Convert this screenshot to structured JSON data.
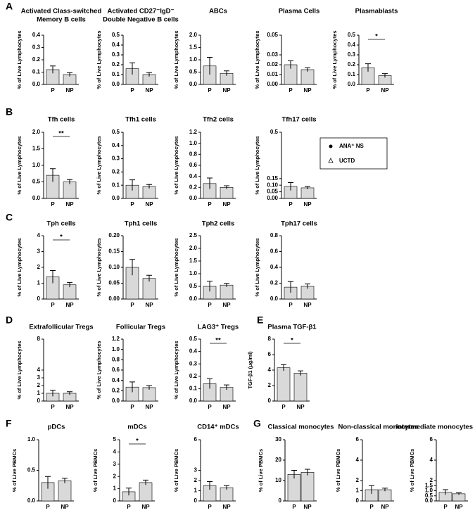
{
  "chart_data": [
    {
      "type": "bar",
      "panel": "A",
      "title": [
        "Activated Class-switched",
        "Memory B cells"
      ],
      "ylabel": "% of Live Lymphocytes",
      "categories": [
        "P",
        "NP"
      ],
      "values": [
        0.12,
        0.08
      ],
      "errors": [
        0.03,
        0.015
      ],
      "ylim": [
        0,
        0.4
      ],
      "yticks": [
        {
          "value": 0,
          "label": "0.0"
        },
        0.1,
        0.2,
        0.3,
        0.4
      ],
      "color": "#d9d9d9"
    },
    {
      "type": "bar",
      "title": [
        "Activated CD27⁻IgD⁻",
        "Double Negative B cells"
      ],
      "ylabel": "% of Live Lymphocytes",
      "categories": [
        "P",
        "NP"
      ],
      "values": [
        0.16,
        0.1
      ],
      "errors": [
        0.06,
        0.02
      ],
      "ylim": [
        0,
        0.5
      ],
      "yticks": [
        {
          "value": 0,
          "label": "0.0"
        },
        0.1,
        0.2,
        0.3,
        0.4,
        0.5
      ],
      "color": "#d9d9d9"
    },
    {
      "type": "bar",
      "title": [
        "ABCs"
      ],
      "ylabel": "% of Live Lymphocytes",
      "categories": [
        "P",
        "NP"
      ],
      "values": [
        0.75,
        0.45
      ],
      "errors": [
        0.35,
        0.1
      ],
      "ylim": [
        0,
        2
      ],
      "yticks": [
        {
          "value": 0,
          "label": "0.0"
        },
        0.5,
        {
          "value": 1,
          "label": "1.0"
        },
        1.5,
        {
          "value": 2,
          "label": "2.0"
        }
      ],
      "color": "#d9d9d9"
    },
    {
      "type": "bar",
      "title": [
        "Plasma Cells"
      ],
      "ylabel": "% of Live Lymphocytes",
      "categories": [
        "P",
        "NP"
      ],
      "values": [
        0.02,
        0.015
      ],
      "errors": [
        0.004,
        0.002
      ],
      "ylim": [
        0,
        0.05
      ],
      "yticks": [
        {
          "value": 0,
          "label": "0.00"
        },
        0.01,
        {
          "value": 0.02,
          "label": "0.02"
        },
        0.03,
        0.05
      ],
      "color": "#d9d9d9"
    },
    {
      "type": "bar",
      "title": [
        "Plasmablasts"
      ],
      "ylabel": "% of Live Lymphocytes",
      "categories": [
        "P",
        "NP"
      ],
      "values": [
        0.17,
        0.09
      ],
      "errors": [
        0.04,
        0.02
      ],
      "significance": "*",
      "ylim": [
        0,
        0.5
      ],
      "yticks": [
        {
          "value": 0,
          "label": "0.0"
        },
        0.1,
        0.2,
        0.3,
        0.4,
        0.5
      ],
      "color": "#d9d9d9"
    },
    {
      "type": "bar",
      "panel": "B",
      "title": [
        "Tfh cells"
      ],
      "ylabel": "% of Live Lymphocytes",
      "categories": [
        "P",
        "NP"
      ],
      "values": [
        0.7,
        0.5
      ],
      "errors": [
        0.2,
        0.07
      ],
      "significance": "**",
      "ylim": [
        0,
        2
      ],
      "yticks": [
        {
          "value": 0,
          "label": "0.0"
        },
        0.5,
        {
          "value": 1,
          "label": "1.0"
        },
        1.5,
        {
          "value": 2,
          "label": "2.0"
        }
      ],
      "color": "#d9d9d9"
    },
    {
      "type": "bar",
      "title": [
        "Tfh1 cells"
      ],
      "ylabel": "% of Live Lymphocytes",
      "categories": [
        "P",
        "NP"
      ],
      "values": [
        0.1,
        0.09
      ],
      "errors": [
        0.04,
        0.015
      ],
      "ylim": [
        0,
        0.5
      ],
      "yticks": [
        {
          "value": 0,
          "label": "0.0"
        },
        0.1,
        0.2,
        0.3,
        0.4,
        0.5
      ],
      "color": "#d9d9d9"
    },
    {
      "type": "bar",
      "title": [
        "Tfh2 cells"
      ],
      "ylabel": "% of Live Lymphocytes",
      "categories": [
        "P",
        "NP"
      ],
      "values": [
        0.27,
        0.2
      ],
      "errors": [
        0.1,
        0.03
      ],
      "ylim": [
        0,
        1.2
      ],
      "yticks": [
        {
          "value": 0,
          "label": "0.0"
        },
        0.2,
        0.4,
        0.6,
        0.8,
        {
          "value": 1,
          "label": "1.0"
        },
        1.2
      ],
      "color": "#d9d9d9"
    },
    {
      "type": "bar",
      "title": [
        "Tfh17 cells"
      ],
      "ylabel": "% of Live Lymphocytes",
      "categories": [
        "P",
        "NP"
      ],
      "values": [
        0.09,
        0.08
      ],
      "errors": [
        0.03,
        0.01
      ],
      "ylim": [
        0,
        0.5
      ],
      "yticks": [
        {
          "value": 0,
          "label": "0.00"
        },
        {
          "value": 0.05,
          "label": "0.05"
        },
        {
          "value": 0.1,
          "label": "0.10"
        },
        {
          "value": 0.15,
          "label": "0.15"
        },
        0.5
      ],
      "color": "#d9d9d9"
    },
    {
      "type": "bar",
      "panel": "C",
      "title": [
        "Tph cells"
      ],
      "ylabel": "% of Live Lymphocytes",
      "categories": [
        "P",
        "NP"
      ],
      "values": [
        1.4,
        0.9
      ],
      "errors": [
        0.4,
        0.15
      ],
      "significance": "*",
      "ylim": [
        0,
        4
      ],
      "yticks": [
        0,
        1,
        2,
        3,
        4
      ],
      "color": "#d9d9d9"
    },
    {
      "type": "bar",
      "title": [
        "Tph1 cells"
      ],
      "ylabel": "% of Live Lymphocytes",
      "categories": [
        "P",
        "NP"
      ],
      "values": [
        0.1,
        0.065
      ],
      "errors": [
        0.025,
        0.01
      ],
      "ylim": [
        0,
        0.2
      ],
      "yticks": [
        {
          "value": 0,
          "label": "0.00"
        },
        {
          "value": 0.05,
          "label": "0.05"
        },
        {
          "value": 0.1,
          "label": "0.10"
        },
        {
          "value": 0.15,
          "label": "0.15"
        },
        {
          "value": 0.2,
          "label": "0.20"
        }
      ],
      "color": "#d9d9d9"
    },
    {
      "type": "bar",
      "title": [
        "Tph2 cells"
      ],
      "ylabel": "% of Live Lymphocytes",
      "categories": [
        "P",
        "NP"
      ],
      "values": [
        0.5,
        0.55
      ],
      "errors": [
        0.2,
        0.07
      ],
      "ylim": [
        0,
        2.5
      ],
      "yticks": [
        {
          "value": 0,
          "label": "0.0"
        },
        0.5,
        {
          "value": 1,
          "label": "1.0"
        },
        1.5,
        {
          "value": 2,
          "label": "2.0"
        },
        2.5
      ],
      "color": "#d9d9d9"
    },
    {
      "type": "bar",
      "title": [
        "Tph17 cells"
      ],
      "ylabel": "% of Live Lymphocytes",
      "categories": [
        "P",
        "NP"
      ],
      "values": [
        0.15,
        0.16
      ],
      "errors": [
        0.07,
        0.03
      ],
      "ylim": [
        0,
        0.8
      ],
      "yticks": [
        {
          "value": 0,
          "label": "0.0"
        },
        0.2,
        0.4,
        0.6,
        0.8
      ],
      "color": "#d9d9d9"
    },
    {
      "type": "bar",
      "panel": "D",
      "title": [
        "Extrafollicular Tregs"
      ],
      "ylabel": "% of Live Lymphocytes",
      "categories": [
        "P",
        "NP"
      ],
      "values": [
        1,
        1
      ],
      "errors": [
        0.4,
        0.2
      ],
      "ylim": [
        0,
        8
      ],
      "yticks": [
        0,
        1,
        2,
        3,
        4,
        8
      ],
      "color": "#d9d9d9"
    },
    {
      "type": "bar",
      "title": [
        "Follicular Tregs"
      ],
      "ylabel": "% of Live Lymphocytes",
      "categories": [
        "P",
        "NP"
      ],
      "values": [
        0.27,
        0.26
      ],
      "errors": [
        0.1,
        0.04
      ],
      "ylim": [
        0,
        1.2
      ],
      "yticks": [
        {
          "value": 0,
          "label": "0.0"
        },
        0.2,
        0.4,
        0.6,
        0.8,
        {
          "value": 1,
          "label": "1.0"
        },
        1.2
      ],
      "color": "#d9d9d9"
    },
    {
      "type": "bar",
      "title": [
        "LAG3⁺ Tregs"
      ],
      "ylabel": "% of Live Lymphocytes",
      "categories": [
        "P",
        "NP"
      ],
      "values": [
        0.14,
        0.11
      ],
      "errors": [
        0.04,
        0.02
      ],
      "significance": "**",
      "ylim": [
        0,
        0.5
      ],
      "yticks": [
        {
          "value": 0,
          "label": "0.0"
        },
        0.1,
        0.2,
        0.3,
        0.4,
        0.5
      ],
      "color": "#d9d9d9"
    },
    {
      "type": "bar",
      "panel": "E",
      "title": [
        "Plasma TGF-β1"
      ],
      "ylabel": "TGF-β1 (μg/ml)",
      "categories": [
        "P",
        "NP"
      ],
      "values": [
        4.3,
        3.6
      ],
      "errors": [
        0.4,
        0.3
      ],
      "significance": "*",
      "ylim": [
        0,
        8
      ],
      "yticks": [
        0,
        2,
        4,
        6,
        8
      ],
      "color": "#d9d9d9"
    },
    {
      "type": "bar",
      "panel": "F",
      "title": [
        "pDCs"
      ],
      "ylabel": "% of Live PBMCs",
      "categories": [
        "P",
        "NP"
      ],
      "values": [
        0.3,
        0.33
      ],
      "errors": [
        0.1,
        0.04
      ],
      "ylim": [
        0,
        1
      ],
      "yticks": [
        {
          "value": 0,
          "label": "0.0"
        },
        0.5,
        {
          "value": 1,
          "label": "1.0"
        }
      ],
      "color": "#d9d9d9"
    },
    {
      "type": "bar",
      "title": [
        "mDCs"
      ],
      "ylabel": "% of Live PBMCs",
      "categories": [
        "P",
        "NP"
      ],
      "values": [
        0.75,
        1.5
      ],
      "errors": [
        0.3,
        0.2
      ],
      "significance": "*",
      "ylim": [
        0,
        5
      ],
      "yticks": [
        0,
        1,
        2,
        3,
        4,
        5
      ],
      "color": "#d9d9d9"
    },
    {
      "type": "bar",
      "title": [
        "CD14⁺ mDCs"
      ],
      "ylabel": "% of Live PBMCs",
      "categories": [
        "P",
        "NP"
      ],
      "values": [
        1.5,
        1.3
      ],
      "errors": [
        0.4,
        0.2
      ],
      "ylim": [
        0,
        6
      ],
      "yticks": [
        0,
        1,
        2,
        3,
        6
      ],
      "color": "#d9d9d9"
    },
    {
      "type": "bar",
      "panel": "G",
      "title": [
        "Classical monocytes"
      ],
      "ylabel": "% of Live PBMCs",
      "categories": [
        "P",
        "NP"
      ],
      "values": [
        13,
        14
      ],
      "errors": [
        2,
        1.5
      ],
      "ylim": [
        0,
        30
      ],
      "yticks": [
        0,
        10,
        20,
        30
      ],
      "color": "#d9d9d9"
    },
    {
      "type": "bar",
      "title": [
        "Non-classical monocytes"
      ],
      "ylabel": "% of Live PBMCs",
      "categories": [
        "P",
        "NP"
      ],
      "values": [
        1.1,
        1.1
      ],
      "errors": [
        0.4,
        0.15
      ],
      "ylim": [
        0,
        6
      ],
      "yticks": [
        0,
        1,
        2,
        4,
        6
      ],
      "color": "#d9d9d9"
    },
    {
      "type": "bar",
      "title": [
        "Intermediate monocytes"
      ],
      "ylabel": "% of Live PBMCs",
      "categories": [
        "P",
        "NP"
      ],
      "values": [
        0.85,
        0.7
      ],
      "errors": [
        0.25,
        0.1
      ],
      "ylim": [
        0,
        6
      ],
      "yticks": [
        {
          "value": 0,
          "label": "0.0"
        },
        0.5,
        {
          "value": 1,
          "label": "1.0"
        },
        1.5,
        2,
        4,
        6
      ],
      "color": "#d9d9d9"
    }
  ],
  "legend": {
    "entries": [
      "ANA⁺ NS",
      "UCTD"
    ]
  }
}
